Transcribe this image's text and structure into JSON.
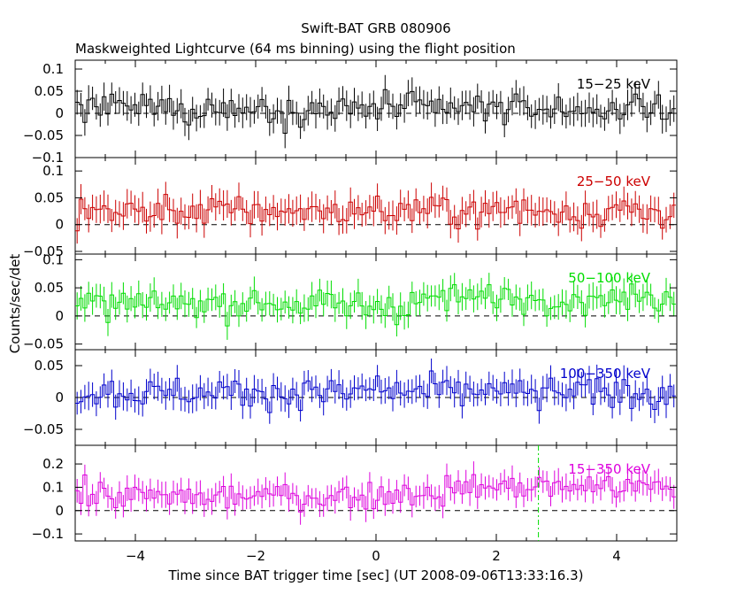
{
  "chart_data": {
    "type": "line",
    "title": "Swift-BAT GRB 080906",
    "subtitle": "Maskweighted Lightcurve (64 ms binning) using the flight position",
    "xlabel": "Time since BAT trigger time [sec] (UT 2008-09-06T13:33:16.3)",
    "ylabel": "Counts/sec/det",
    "xlim": [
      -5,
      5
    ],
    "x_ticks": [
      "−4",
      "−2",
      "0",
      "2",
      "4"
    ],
    "x_tick_values": [
      -4,
      -2,
      0,
      2,
      4
    ],
    "bin_width_sec": 0.064,
    "trigger_marker_time": 2.7,
    "panels": [
      {
        "name": "15−25 keV",
        "color": "#000000",
        "ylim": [
          -0.1,
          0.12
        ],
        "ticks": [
          0.1,
          0.05,
          0,
          -0.05,
          -0.1
        ],
        "tick_labels": [
          "0.1",
          "0.05",
          "0",
          "−0.05",
          "−0.1"
        ],
        "mean_level": 0.01,
        "noise": 0.03,
        "err": 0.03,
        "trend": 0.0
      },
      {
        "name": "25−50 keV",
        "color": "#cc0000",
        "ylim": [
          -0.055,
          0.125
        ],
        "ticks": [
          0.1,
          0.05,
          0,
          -0.05
        ],
        "tick_labels": [
          "0.1",
          "0.05",
          "0",
          "−0.05"
        ],
        "mean_level": 0.025,
        "noise": 0.025,
        "err": 0.025,
        "trend": 0.0
      },
      {
        "name": "50−100 keV",
        "color": "#00dd00",
        "ylim": [
          -0.06,
          0.11
        ],
        "ticks": [
          0.1,
          0.05,
          0,
          -0.05
        ],
        "tick_labels": [
          "0.1",
          "0.05",
          "0",
          "−0.05"
        ],
        "mean_level": 0.02,
        "noise": 0.022,
        "err": 0.022,
        "trend": 0.012
      },
      {
        "name": "100−350 keV",
        "color": "#0000cc",
        "ylim": [
          -0.075,
          0.075
        ],
        "ticks": [
          0.05,
          0,
          -0.05
        ],
        "tick_labels": [
          "0.05",
          "0",
          "−0.05"
        ],
        "mean_level": 0.008,
        "noise": 0.02,
        "err": 0.02,
        "trend": 0.0
      },
      {
        "name": "15−350 keV",
        "color": "#dd00dd",
        "ylim": [
          -0.13,
          0.28
        ],
        "ticks": [
          0.2,
          0.1,
          0,
          -0.1
        ],
        "tick_labels": [
          "0.2",
          "0.1",
          "0",
          "−0.1"
        ],
        "mean_level": 0.06,
        "noise": 0.05,
        "err": 0.05,
        "trend": 0.04
      }
    ]
  }
}
